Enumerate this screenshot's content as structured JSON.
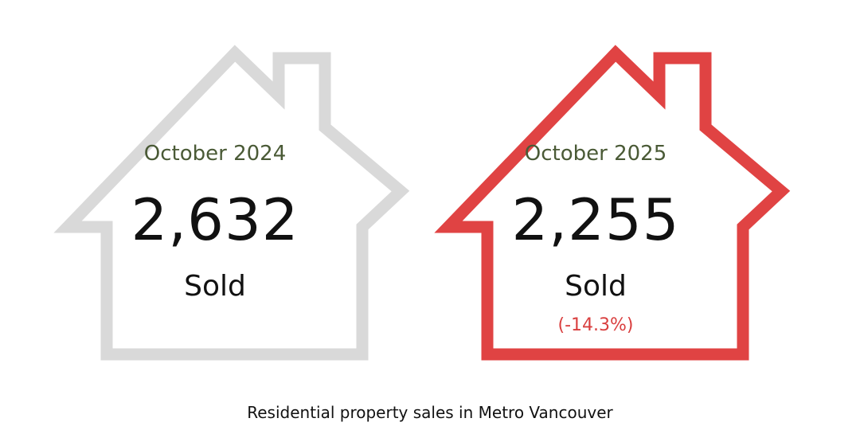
{
  "colors": {
    "previous_outline": "#d9d9d9",
    "current_outline": "#e04343",
    "month_text": "#4a5a36",
    "change_text": "#d93f3f"
  },
  "previous": {
    "month": "October 2024",
    "value": "2,632",
    "unit": "Sold"
  },
  "current": {
    "month": "October 2025",
    "value": "2,255",
    "unit": "Sold",
    "change": "(-14.3%)"
  },
  "caption": "Residential property sales in Metro Vancouver"
}
